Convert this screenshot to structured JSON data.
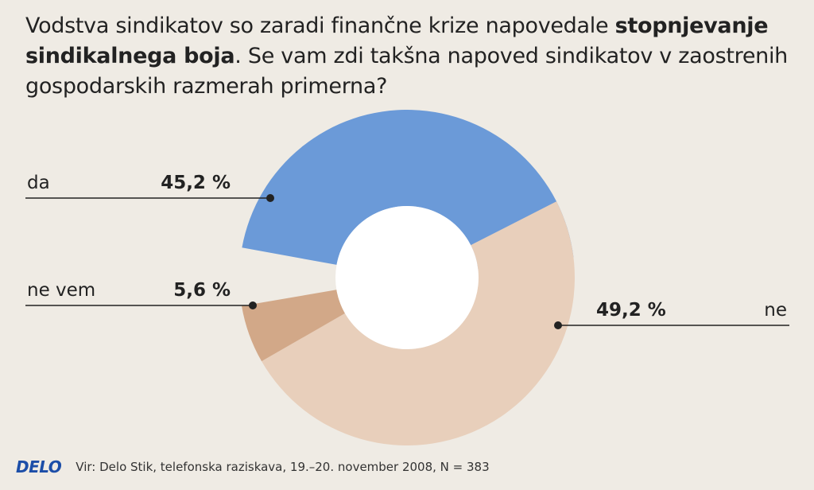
{
  "title": {
    "part1": "Vodstva sindikatov so zaradi finančne krize napovedale ",
    "bold": "stopnjevanje sindikalnega boja",
    "part2": ". Se vam zdi takšna napoved sindikatov v zaostrenih gospodarskih razmerah primerna?"
  },
  "chart_data": {
    "type": "pie",
    "donut": true,
    "title": "Vodstva sindikatov so zaradi finančne krize napovedale stopnjevanje sindikalnega boja. Se vam zdi takšna napoved sindikatov v zaostrenih gospodarskih razmerah primerna?",
    "categories": [
      "da",
      "ne",
      "ne vem"
    ],
    "values": [
      45.2,
      49.2,
      5.6
    ],
    "value_labels": [
      "45,2 %",
      "49,2 %",
      "5,6 %"
    ],
    "colors": [
      "#6b9ad8",
      "#e8cfbb",
      "#d2a888"
    ],
    "legend": "labels beside slices with leader lines"
  },
  "footer": {
    "logo": "DELO",
    "source": "Vir: Delo Stik, telefonska raziskava, 19.–20. november 2008, N = 383"
  }
}
